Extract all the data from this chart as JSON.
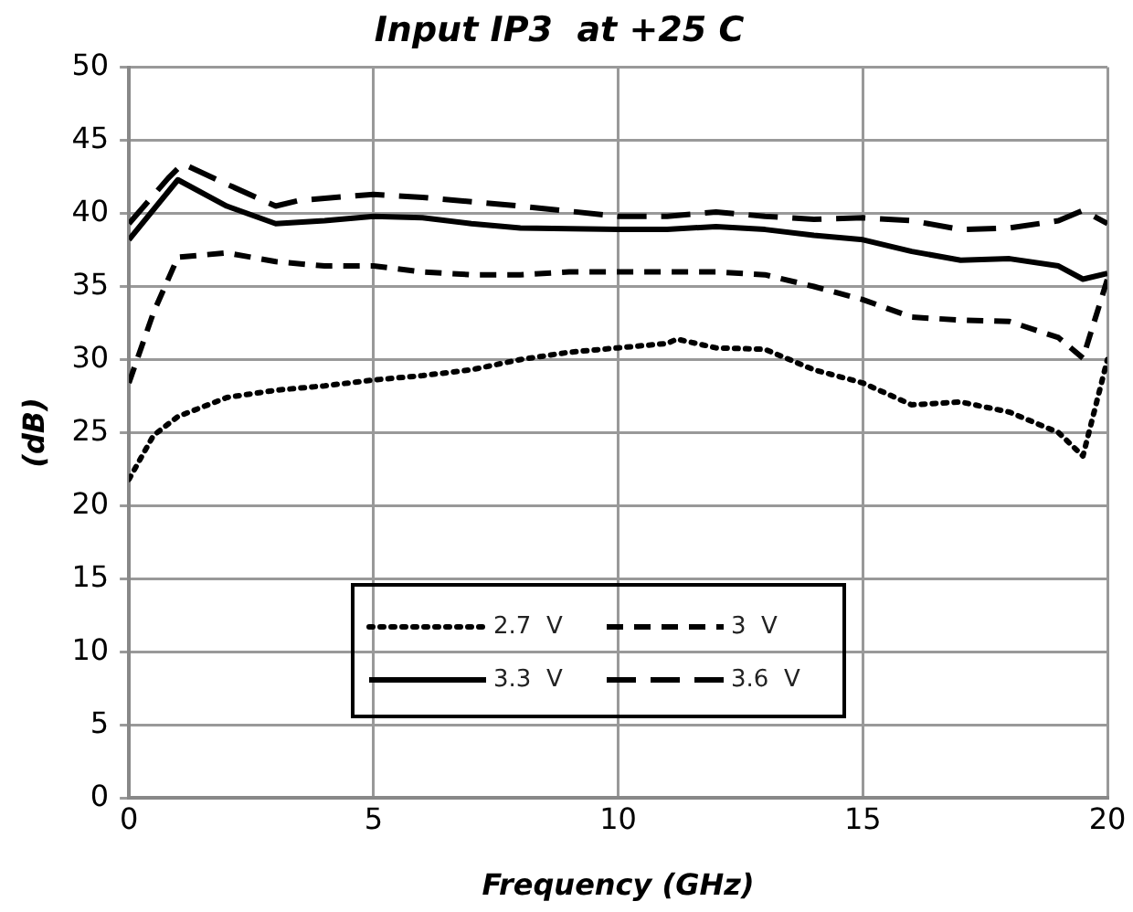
{
  "chart_data": {
    "type": "line",
    "title": "Input IP3  at +25 C",
    "xlabel": "Frequency (GHz)",
    "ylabel": "(dB)",
    "xlim": [
      0,
      20
    ],
    "xticks": [
      0,
      5,
      10,
      15,
      20
    ],
    "ylim": [
      0,
      50
    ],
    "yticks": [
      0,
      5,
      10,
      15,
      20,
      25,
      30,
      35,
      40,
      45,
      50
    ],
    "grid": true,
    "legend": "bottom",
    "marker": "none",
    "series": [
      {
        "name": "2.7  V",
        "color": "#000000",
        "line_style": "dotted",
        "x": [
          0,
          0.5,
          1,
          2,
          3,
          4,
          5,
          6,
          7,
          8,
          9,
          10,
          11,
          11.2,
          12,
          13,
          14,
          15,
          16,
          17,
          18,
          19,
          19.5,
          20
        ],
        "values": [
          21.8,
          24.8,
          26.1,
          27.4,
          27.9,
          28.2,
          28.6,
          28.9,
          29.3,
          30,
          30.5,
          30.8,
          31.1,
          31.4,
          30.8,
          30.7,
          29.3,
          28.4,
          26.9,
          27.1,
          26.4,
          25,
          23.4,
          30
        ]
      },
      {
        "name": "3  V",
        "color": "#000000",
        "line_style": "dashed",
        "x": [
          0,
          0.5,
          1,
          2,
          3,
          4,
          5,
          6,
          7,
          8,
          9,
          10,
          11,
          12,
          13,
          14,
          15,
          16,
          17,
          18,
          19,
          19.5,
          20
        ],
        "values": [
          28.4,
          33.2,
          37,
          37.3,
          36.7,
          36.4,
          36.4,
          36,
          35.8,
          35.8,
          36,
          36,
          36,
          36,
          35.8,
          35,
          34.1,
          32.9,
          32.7,
          32.6,
          31.5,
          30.1,
          35.5
        ]
      },
      {
        "name": "3.3  V",
        "color": "#000000",
        "line_style": "solid",
        "x": [
          0,
          1,
          2,
          3,
          4,
          5,
          6,
          7,
          8,
          10,
          11,
          12,
          13,
          14,
          15,
          16,
          17,
          18,
          19,
          19.5,
          20
        ],
        "values": [
          38.2,
          42.3,
          40.5,
          39.3,
          39.5,
          39.8,
          39.7,
          39.3,
          39,
          38.9,
          38.9,
          39.1,
          38.9,
          38.5,
          38.2,
          37.4,
          36.8,
          36.9,
          36.4,
          35.5,
          35.9
        ]
      },
      {
        "name": "3.6  V",
        "color": "#000000",
        "line_style": "dashed",
        "x": [
          0,
          0.8,
          1.1,
          2,
          3,
          3.5,
          5,
          6,
          7,
          8,
          10,
          11,
          12,
          13,
          14,
          15,
          16,
          17,
          18,
          19,
          19.5,
          20
        ],
        "values": [
          39.3,
          42.4,
          43.4,
          42,
          40.5,
          40.9,
          41.3,
          41.1,
          40.8,
          40.5,
          39.8,
          39.8,
          40.1,
          39.8,
          39.6,
          39.7,
          39.5,
          38.9,
          39,
          39.5,
          40.2,
          39.3
        ]
      }
    ]
  }
}
